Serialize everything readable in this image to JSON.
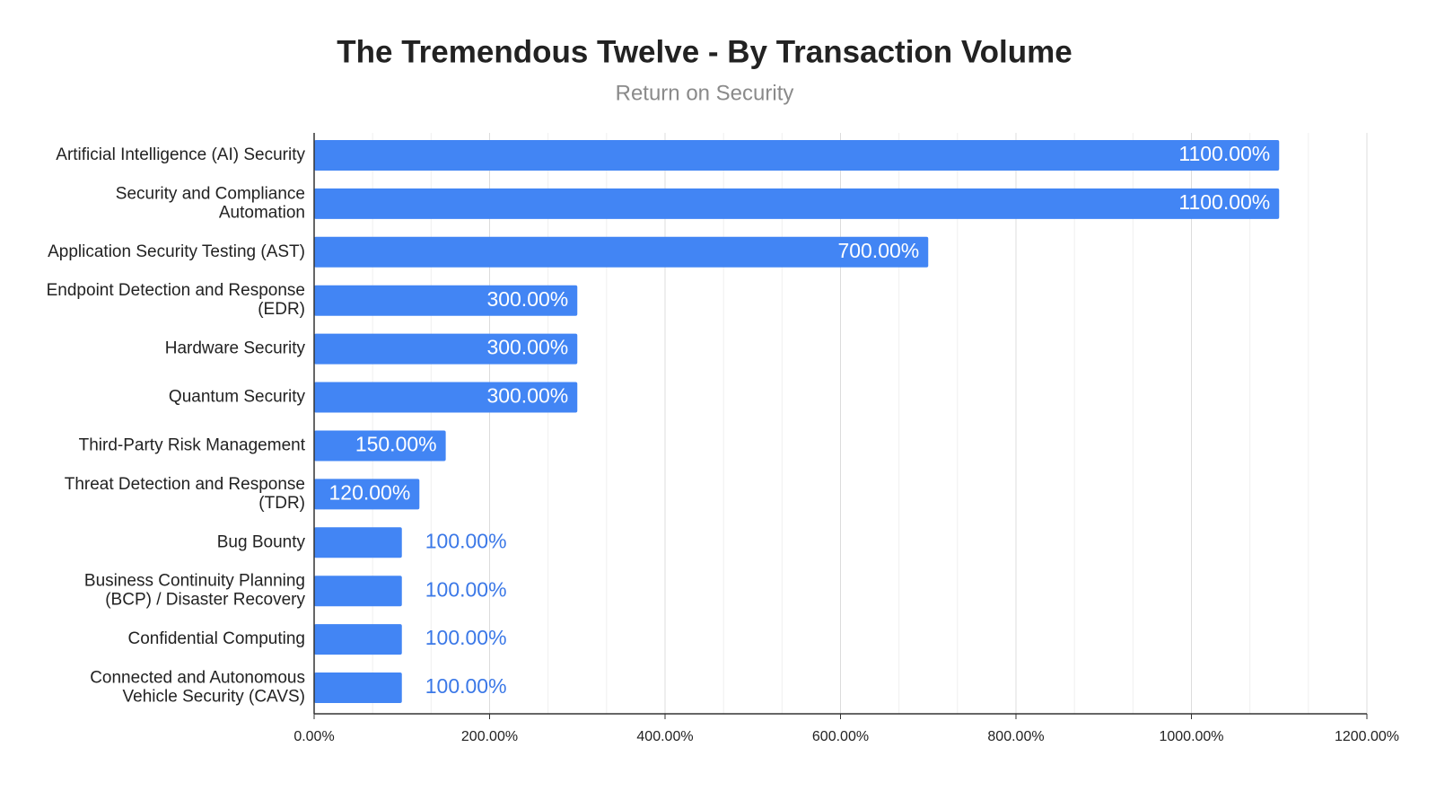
{
  "chart_data": {
    "type": "bar",
    "orientation": "horizontal",
    "title": "The Tremendous Twelve - By Transaction Volume",
    "subtitle": "Return on Security",
    "categories": [
      "Artificial Intelligence (AI) Security",
      "Security and Compliance Automation",
      "Application Security Testing (AST)",
      "Endpoint Detection and Response (EDR)",
      "Hardware Security",
      "Quantum Security",
      "Third-Party Risk Management",
      "Threat Detection and Response (TDR)",
      "Bug Bounty",
      "Business Continuity Planning (BCP) / Disaster Recovery",
      "Confidential Computing",
      "Connected and Autonomous Vehicle Security (CAVS)"
    ],
    "values": [
      1100,
      1100,
      700,
      300,
      300,
      300,
      150,
      120,
      100,
      100,
      100,
      100
    ],
    "value_labels": [
      "1100.00%",
      "1100.00%",
      "700.00%",
      "300.00%",
      "300.00%",
      "300.00%",
      "150.00%",
      "120.00%",
      "100.00%",
      "100.00%",
      "100.00%",
      "100.00%"
    ],
    "color": "#4285f4",
    "xlim": [
      0,
      1200
    ],
    "xticks": [
      {
        "value": 0,
        "label": "0.00%"
      },
      {
        "value": 200,
        "label": "200.00%"
      },
      {
        "value": 400,
        "label": "400.00%"
      },
      {
        "value": 600,
        "label": "600.00%"
      },
      {
        "value": 800,
        "label": "800.00%"
      },
      {
        "value": 1000,
        "label": "1000.00%"
      },
      {
        "value": 1200,
        "label": "1200.00%"
      }
    ],
    "grid": true
  }
}
